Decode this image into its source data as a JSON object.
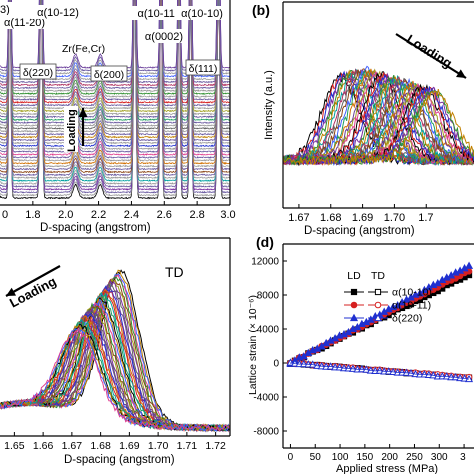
{
  "chart_data": [
    {
      "panel": "a",
      "type": "line",
      "xlabel": "D-spacing (angstrom)",
      "xlim": [
        1.6,
        3.0
      ],
      "x_ticks": [
        "1.8",
        "2.0",
        "2.2",
        "2.4",
        "2.6",
        "2.8",
        "3.0"
      ],
      "annotations": [
        "α(11-20)",
        "α(10-12)",
        "α(10-11)",
        "α(10-10)",
        "α(0002)",
        "Zr(Fe,Cr)",
        "δ(220)",
        "δ(200)",
        "δ(111)",
        "Loading",
        "3)"
      ],
      "peaks": [
        1.57,
        1.66,
        1.85,
        2.06,
        2.21,
        2.42,
        2.58,
        2.69,
        2.76,
        2.93
      ]
    },
    {
      "panel": "b",
      "type": "line",
      "xlabel": "D-spacing (angstrom)",
      "ylabel": "Intensity (a.u.)",
      "xlim": [
        1.665,
        1.725
      ],
      "x_ticks": [
        "1.67",
        "1.68",
        "1.69",
        "1.70",
        "1.7"
      ],
      "annotations": [
        "Loading"
      ],
      "peak_start": 1.683,
      "peak_end": 1.713
    },
    {
      "panel": "c",
      "type": "line",
      "xlabel": "D-spacing (angstrom)",
      "xlim": [
        1.645,
        1.725
      ],
      "x_ticks": [
        "1.65",
        "1.66",
        "1.67",
        "1.68",
        "1.69",
        "1.70",
        "1.71",
        "1.72"
      ],
      "annotations": [
        "Loading",
        "TD"
      ],
      "peak_start": 1.687,
      "peak_end": 1.672
    },
    {
      "panel": "d",
      "type": "scatter",
      "xlabel": "Applied stress (MPa)",
      "ylabel": "Lattice strain (× 10⁻⁶)",
      "xlim": [
        -15,
        370
      ],
      "ylim": [
        -10000,
        14000
      ],
      "x_ticks": [
        "0",
        "50",
        "100",
        "150",
        "200",
        "250",
        "300",
        "3"
      ],
      "y_ticks": [
        "12000",
        "8000",
        "4000",
        "0",
        "-4000",
        "-8000"
      ],
      "legend_headers": [
        "LD",
        "TD"
      ],
      "series": [
        {
          "name": "α(10-10)",
          "color": "#000000",
          "ld_slope": 9.0,
          "td_slope": -4.7,
          "marker": "square"
        },
        {
          "name": "α(10-11)",
          "color": "#d62020",
          "ld_slope": 9.4,
          "td_slope": -4.5,
          "marker": "circle"
        },
        {
          "name": "δ(220)",
          "color": "#2030d0",
          "ld_slope": 9.9,
          "td_slope": -4.9,
          "marker": "triangle"
        }
      ]
    }
  ],
  "panel_labels": [
    "(b)",
    "(d)"
  ]
}
